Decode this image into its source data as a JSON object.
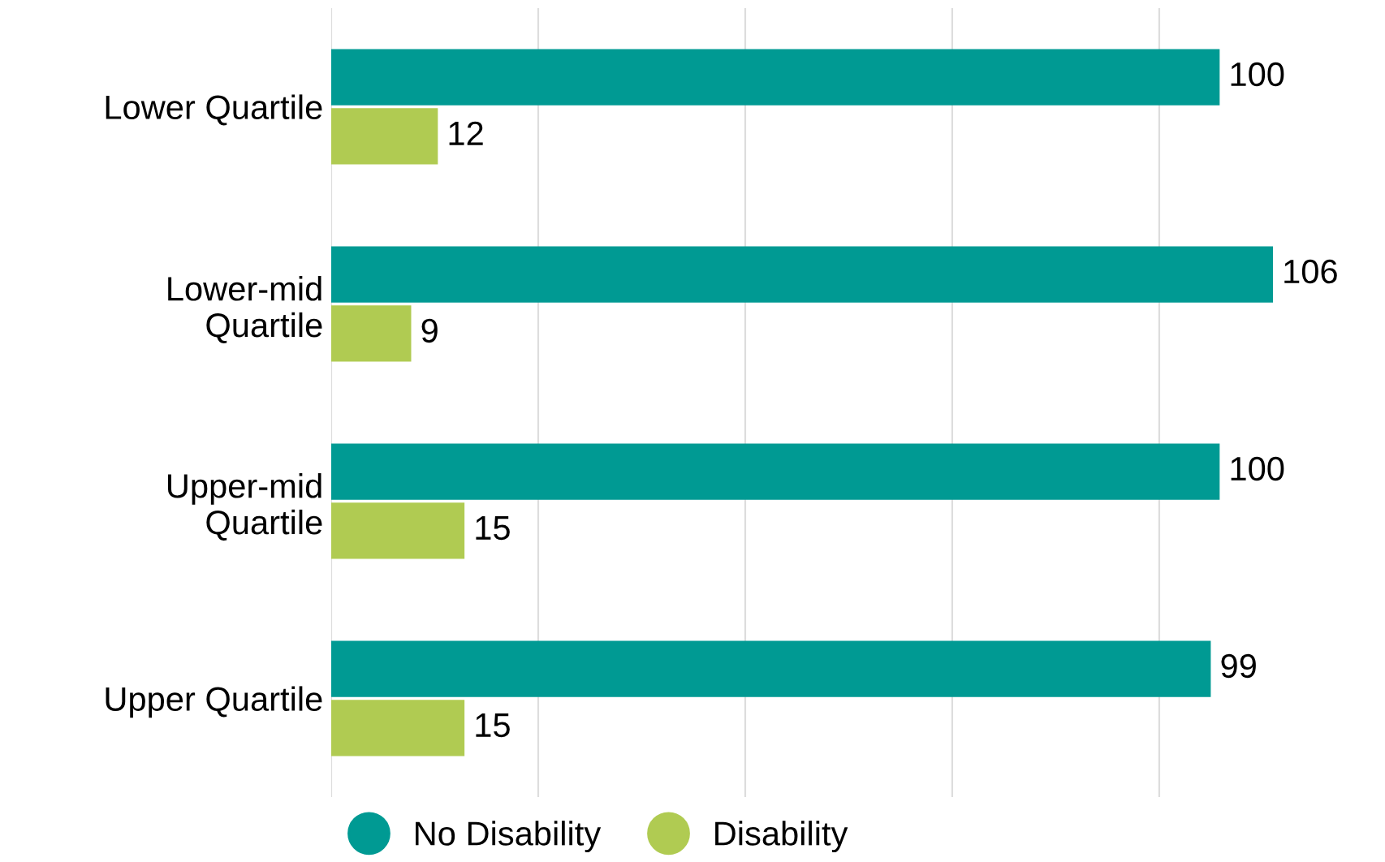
{
  "chart_data": {
    "type": "bar",
    "orientation": "horizontal",
    "categories": [
      "Lower Quartile",
      "Lower-mid\nQuartile",
      "Upper-mid\nQuartile",
      "Upper Quartile"
    ],
    "series": [
      {
        "name": "No Disability",
        "color": "#009a93",
        "values": [
          100,
          106,
          100,
          99
        ]
      },
      {
        "name": "Disability",
        "color": "#b0cb52",
        "values": [
          12,
          9,
          15,
          15
        ]
      }
    ],
    "xticks": [
      {
        "value": 0,
        "label": null
      },
      {
        "value": 23.3,
        "label": null
      },
      {
        "value": 46.6,
        "label": null
      },
      {
        "value": 69.9,
        "label": null
      },
      {
        "value": 93.2,
        "label": null
      }
    ],
    "grid": "x",
    "legend": "bottom",
    "data_labels": true
  }
}
